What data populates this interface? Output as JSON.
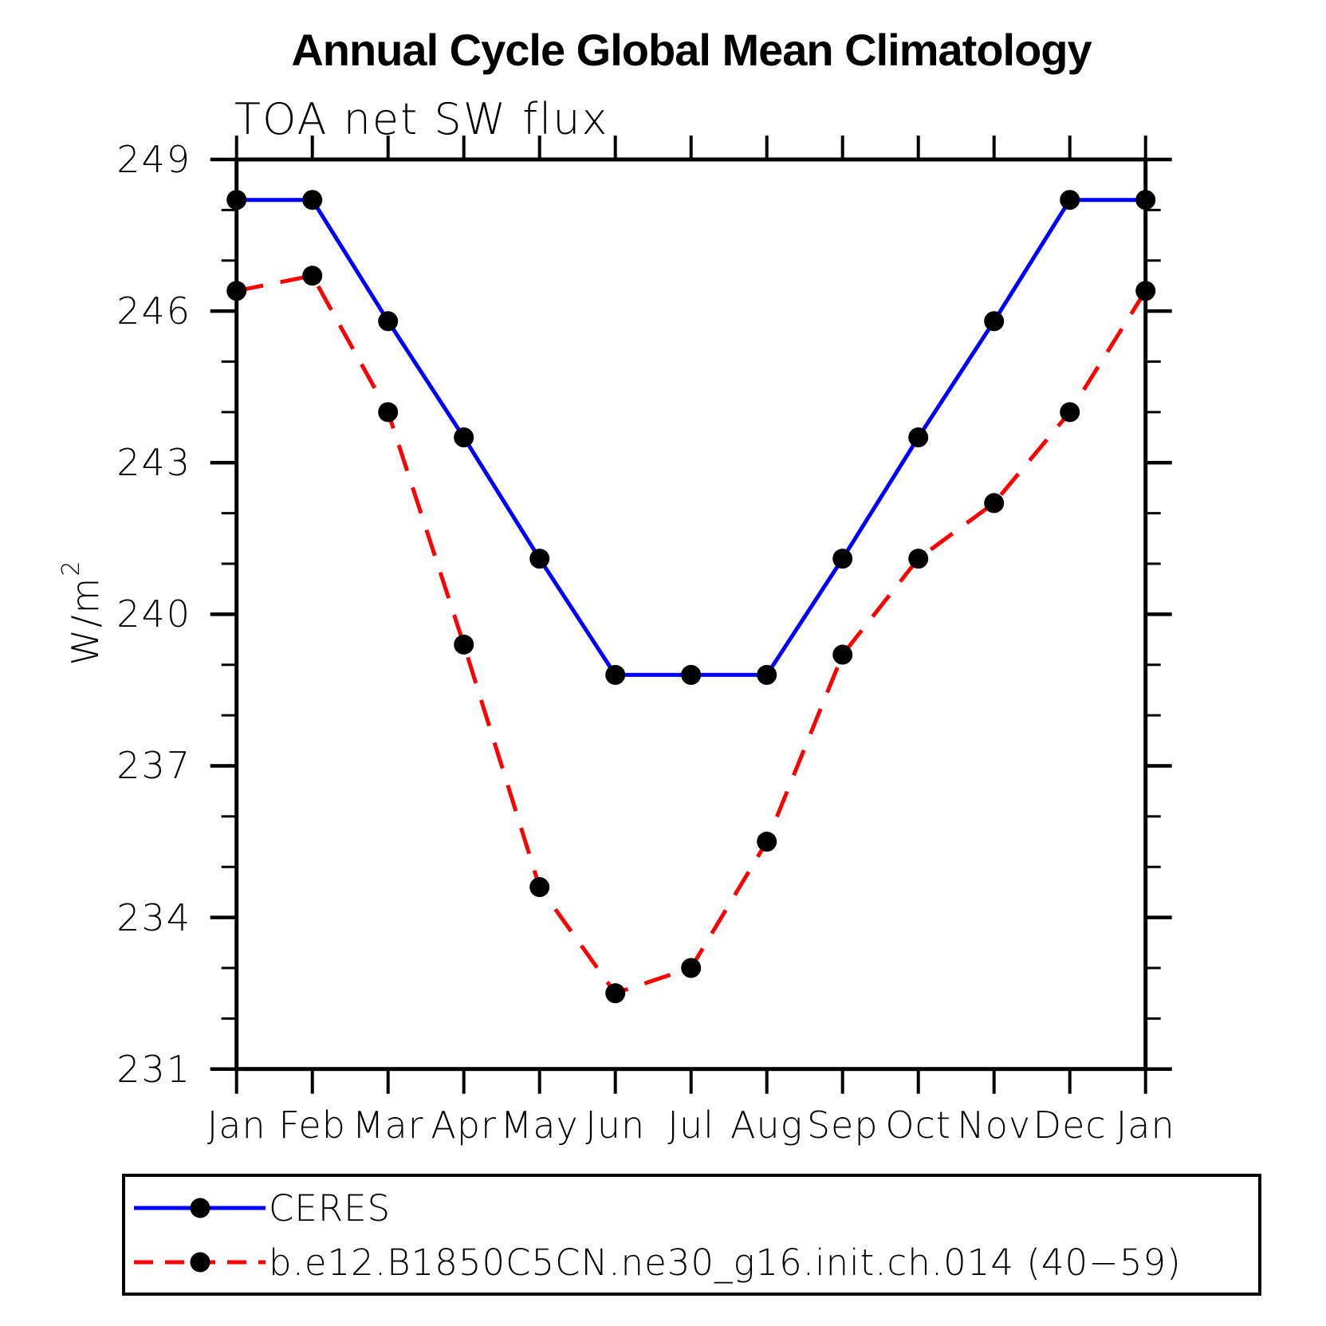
{
  "chart_data": {
    "type": "line",
    "title": "Annual Cycle Global Mean Climatology",
    "subtitle": "TOA net SW flux",
    "ylabel_base": "W/m",
    "ylabel_exp": "2",
    "categories": [
      "Jan",
      "Feb",
      "Mar",
      "Apr",
      "May",
      "Jun",
      "Jul",
      "Aug",
      "Sep",
      "Oct",
      "Nov",
      "Dec",
      "Jan"
    ],
    "ylim": [
      231,
      249
    ],
    "y_ticks_major": [
      249,
      246,
      243,
      240,
      237,
      234,
      231
    ],
    "y_minor_step": 1,
    "grid": false,
    "legend_position": "bottom",
    "marker": "circle",
    "marker_color": "#000000",
    "axis_color": "#000000",
    "series": [
      {
        "name": "CERES",
        "color": "#0000ff",
        "style": "solid",
        "values": [
          248.2,
          248.2,
          245.8,
          243.5,
          241.1,
          238.8,
          238.8,
          238.8,
          241.1,
          243.5,
          245.8,
          248.2,
          248.2
        ]
      },
      {
        "name": "b.e12.B1850C5CN.ne30_g16.init.ch.014 (40−59)",
        "color": "#ff0000",
        "style": "dashed",
        "values": [
          246.4,
          246.7,
          244.0,
          239.4,
          234.6,
          232.5,
          233.0,
          235.5,
          239.2,
          241.1,
          242.2,
          244.0,
          246.4
        ]
      }
    ]
  }
}
